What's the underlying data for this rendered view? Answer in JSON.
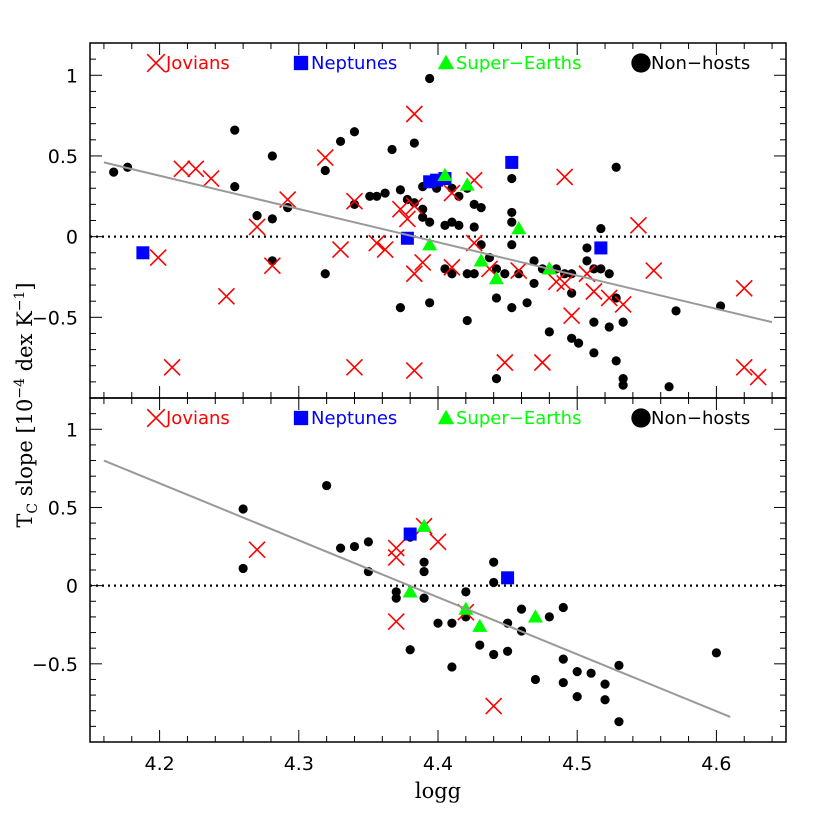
{
  "chart_data": [
    {
      "type": "scatter",
      "panel": "top",
      "xlim": [
        4.15,
        4.65
      ],
      "ylim": [
        -1.0,
        1.2
      ],
      "yticks": [
        {
          "v": 1,
          "label": "1"
        },
        {
          "v": 0.5,
          "label": "0.5"
        },
        {
          "v": 0,
          "label": "0"
        },
        {
          "v": -0.5,
          "label": "−0.5"
        }
      ],
      "fit_line": [
        [
          4.16,
          0.46
        ],
        [
          4.64,
          -0.53
        ]
      ],
      "zero_line": 0,
      "legend": [
        {
          "label": "Jovians",
          "marker": "cross",
          "color": "#ff0000"
        },
        {
          "label": "Neptunes",
          "marker": "square",
          "color": "#0000ff"
        },
        {
          "label": "Super−Earths",
          "marker": "triangle",
          "color": "#00ff00"
        },
        {
          "label": "Non−hosts",
          "marker": "circle",
          "color": "#000000"
        }
      ],
      "series": [
        {
          "name": "Non−hosts",
          "marker": "circle",
          "color": "#000000",
          "points": [
            [
              4.167,
              0.4
            ],
            [
              4.177,
              0.43
            ],
            [
              4.254,
              0.66
            ],
            [
              4.254,
              0.31
            ],
            [
              4.27,
              0.13
            ],
            [
              4.281,
              0.5
            ],
            [
              4.281,
              0.11
            ],
            [
              4.281,
              -0.15
            ],
            [
              4.292,
              0.18
            ],
            [
              4.319,
              0.41
            ],
            [
              4.319,
              -0.23
            ],
            [
              4.33,
              0.59
            ],
            [
              4.34,
              0.65
            ],
            [
              4.34,
              0.2
            ],
            [
              4.351,
              0.25
            ],
            [
              4.356,
              0.25
            ],
            [
              4.362,
              0.27
            ],
            [
              4.367,
              0.54
            ],
            [
              4.373,
              0.29
            ],
            [
              4.373,
              -0.44
            ],
            [
              4.378,
              0.23
            ],
            [
              4.383,
              0.58
            ],
            [
              4.383,
              0.21
            ],
            [
              4.389,
              0.31
            ],
            [
              4.389,
              0.17
            ],
            [
              4.389,
              0.12
            ],
            [
              4.394,
              0.98
            ],
            [
              4.394,
              0.33
            ],
            [
              4.394,
              0.09
            ],
            [
              4.394,
              -0.41
            ],
            [
              4.399,
              0.3
            ],
            [
              4.405,
              0.07
            ],
            [
              4.405,
              -0.2
            ],
            [
              4.41,
              0.3
            ],
            [
              4.41,
              0.09
            ],
            [
              4.41,
              -0.23
            ],
            [
              4.415,
              0.25
            ],
            [
              4.415,
              0.07
            ],
            [
              4.421,
              0.3
            ],
            [
              4.421,
              -0.23
            ],
            [
              4.421,
              -0.52
            ],
            [
              4.426,
              0.2
            ],
            [
              4.426,
              0.06
            ],
            [
              4.426,
              -0.23
            ],
            [
              4.431,
              0.18
            ],
            [
              4.431,
              -0.05
            ],
            [
              4.437,
              -0.13
            ],
            [
              4.442,
              -0.2
            ],
            [
              4.442,
              -0.38
            ],
            [
              4.442,
              -0.88
            ],
            [
              4.448,
              -0.23
            ],
            [
              4.453,
              0.36
            ],
            [
              4.453,
              0.15
            ],
            [
              4.453,
              0.09
            ],
            [
              4.453,
              -0.05
            ],
            [
              4.453,
              -0.44
            ],
            [
              4.458,
              -0.23
            ],
            [
              4.464,
              -0.41
            ],
            [
              4.469,
              -0.15
            ],
            [
              4.469,
              -0.29
            ],
            [
              4.475,
              -0.2
            ],
            [
              4.48,
              -0.59
            ],
            [
              4.485,
              -0.2
            ],
            [
              4.491,
              -0.23
            ],
            [
              4.496,
              -0.23
            ],
            [
              4.496,
              -0.35
            ],
            [
              4.496,
              -0.63
            ],
            [
              4.501,
              -0.66
            ],
            [
              4.507,
              -0.07
            ],
            [
              4.507,
              -0.15
            ],
            [
              4.512,
              -0.2
            ],
            [
              4.512,
              -0.53
            ],
            [
              4.512,
              -0.72
            ],
            [
              4.517,
              0.05
            ],
            [
              4.517,
              -0.2
            ],
            [
              4.523,
              -0.56
            ],
            [
              4.523,
              -0.23
            ],
            [
              4.528,
              0.43
            ],
            [
              4.528,
              -0.38
            ],
            [
              4.528,
              -0.77
            ],
            [
              4.533,
              -0.53
            ],
            [
              4.533,
              -0.88
            ],
            [
              4.533,
              -0.92
            ],
            [
              4.566,
              -0.93
            ],
            [
              4.571,
              -0.46
            ],
            [
              4.603,
              -0.43
            ]
          ]
        },
        {
          "name": "Jovians",
          "marker": "cross",
          "color": "#ff0000",
          "points": [
            [
              4.199,
              -0.13
            ],
            [
              4.209,
              -0.81
            ],
            [
              4.216,
              0.42
            ],
            [
              4.226,
              0.42
            ],
            [
              4.237,
              0.36
            ],
            [
              4.248,
              -0.37
            ],
            [
              4.27,
              0.06
            ],
            [
              4.281,
              -0.18
            ],
            [
              4.292,
              0.23
            ],
            [
              4.319,
              0.49
            ],
            [
              4.33,
              -0.08
            ],
            [
              4.34,
              0.22
            ],
            [
              4.34,
              -0.81
            ],
            [
              4.356,
              -0.04
            ],
            [
              4.362,
              -0.08
            ],
            [
              4.373,
              0.17
            ],
            [
              4.378,
              0.11
            ],
            [
              4.383,
              0.76
            ],
            [
              4.383,
              0.19
            ],
            [
              4.383,
              -0.23
            ],
            [
              4.383,
              -0.83
            ],
            [
              4.389,
              -0.16
            ],
            [
              4.41,
              0.27
            ],
            [
              4.41,
              -0.19
            ],
            [
              4.426,
              0.35
            ],
            [
              4.426,
              -0.04
            ],
            [
              4.437,
              -0.2
            ],
            [
              4.448,
              -0.78
            ],
            [
              4.458,
              -0.21
            ],
            [
              4.475,
              -0.78
            ],
            [
              4.485,
              -0.28
            ],
            [
              4.491,
              0.37
            ],
            [
              4.491,
              -0.29
            ],
            [
              4.496,
              -0.49
            ],
            [
              4.507,
              -0.23
            ],
            [
              4.512,
              -0.34
            ],
            [
              4.523,
              -0.38
            ],
            [
              4.533,
              -0.42
            ],
            [
              4.544,
              0.07
            ],
            [
              4.555,
              -0.21
            ],
            [
              4.62,
              -0.32
            ],
            [
              4.62,
              -0.81
            ],
            [
              4.63,
              -0.87
            ]
          ]
        },
        {
          "name": "Neptunes",
          "marker": "square",
          "color": "#0000ff",
          "points": [
            [
              4.188,
              -0.1
            ],
            [
              4.378,
              -0.01
            ],
            [
              4.394,
              0.34
            ],
            [
              4.399,
              0.35
            ],
            [
              4.405,
              0.36
            ],
            [
              4.453,
              0.46
            ],
            [
              4.517,
              -0.07
            ]
          ]
        },
        {
          "name": "Super−Earths",
          "marker": "triangle",
          "color": "#00ff00",
          "points": [
            [
              4.394,
              -0.05
            ],
            [
              4.405,
              0.38
            ],
            [
              4.421,
              0.32
            ],
            [
              4.431,
              -0.15
            ],
            [
              4.442,
              -0.26
            ],
            [
              4.458,
              0.05
            ],
            [
              4.48,
              -0.2
            ]
          ]
        }
      ]
    },
    {
      "type": "scatter",
      "panel": "bottom",
      "xlim": [
        4.15,
        4.65
      ],
      "ylim": [
        -1.0,
        1.2
      ],
      "xlabel": "logg",
      "xticks": [
        {
          "v": 4.2,
          "label": "4.2"
        },
        {
          "v": 4.3,
          "label": "4.3"
        },
        {
          "v": 4.4,
          "label": "4.4"
        },
        {
          "v": 4.5,
          "label": "4.5"
        },
        {
          "v": 4.6,
          "label": "4.6"
        }
      ],
      "yticks": [
        {
          "v": 1,
          "label": "1"
        },
        {
          "v": 0.5,
          "label": "0.5"
        },
        {
          "v": 0,
          "label": "0"
        },
        {
          "v": -0.5,
          "label": "−0.5"
        }
      ],
      "fit_line": [
        [
          4.16,
          0.8
        ],
        [
          4.61,
          -0.84
        ]
      ],
      "zero_line": 0,
      "legend": [
        {
          "label": "Jovians",
          "marker": "cross",
          "color": "#ff0000"
        },
        {
          "label": "Neptunes",
          "marker": "square",
          "color": "#0000ff"
        },
        {
          "label": "Super−Earths",
          "marker": "triangle",
          "color": "#00ff00"
        },
        {
          "label": "Non−hosts",
          "marker": "circle",
          "color": "#000000"
        }
      ],
      "series": [
        {
          "name": "Non−hosts",
          "marker": "circle",
          "color": "#000000",
          "points": [
            [
              4.26,
              0.49
            ],
            [
              4.26,
              0.11
            ],
            [
              4.32,
              0.64
            ],
            [
              4.33,
              0.24
            ],
            [
              4.34,
              0.25
            ],
            [
              4.35,
              0.09
            ],
            [
              4.35,
              0.28
            ],
            [
              4.37,
              -0.04
            ],
            [
              4.37,
              -0.08
            ],
            [
              4.38,
              -0.41
            ],
            [
              4.38,
              0.31
            ],
            [
              4.39,
              0.15
            ],
            [
              4.39,
              0.09
            ],
            [
              4.39,
              -0.08
            ],
            [
              4.4,
              -0.24
            ],
            [
              4.41,
              -0.24
            ],
            [
              4.41,
              -0.52
            ],
            [
              4.42,
              -0.04
            ],
            [
              4.42,
              -0.2
            ],
            [
              4.43,
              -0.38
            ],
            [
              4.44,
              0.15
            ],
            [
              4.44,
              0.02
            ],
            [
              4.44,
              -0.44
            ],
            [
              4.45,
              -0.42
            ],
            [
              4.45,
              -0.24
            ],
            [
              4.46,
              -0.15
            ],
            [
              4.46,
              -0.29
            ],
            [
              4.47,
              -0.6
            ],
            [
              4.48,
              -0.2
            ],
            [
              4.49,
              -0.14
            ],
            [
              4.49,
              -0.47
            ],
            [
              4.49,
              -0.62
            ],
            [
              4.5,
              -0.55
            ],
            [
              4.5,
              -0.71
            ],
            [
              4.51,
              -0.56
            ],
            [
              4.52,
              -0.63
            ],
            [
              4.52,
              -0.73
            ],
            [
              4.53,
              -0.51
            ],
            [
              4.53,
              -0.87
            ],
            [
              4.6,
              -0.43
            ]
          ]
        },
        {
          "name": "Jovians",
          "marker": "cross",
          "color": "#ff0000",
          "points": [
            [
              4.27,
              0.23
            ],
            [
              4.37,
              0.24
            ],
            [
              4.37,
              0.18
            ],
            [
              4.37,
              -0.23
            ],
            [
              4.39,
              0.38
            ],
            [
              4.4,
              0.28
            ],
            [
              4.42,
              -0.17
            ],
            [
              4.44,
              -0.77
            ]
          ]
        },
        {
          "name": "Neptunes",
          "marker": "square",
          "color": "#0000ff",
          "points": [
            [
              4.38,
              0.33
            ],
            [
              4.45,
              0.05
            ]
          ]
        },
        {
          "name": "Super−Earths",
          "marker": "triangle",
          "color": "#00ff00",
          "points": [
            [
              4.38,
              -0.04
            ],
            [
              4.39,
              0.38
            ],
            [
              4.42,
              -0.15
            ],
            [
              4.43,
              -0.26
            ],
            [
              4.47,
              -0.2
            ]
          ]
        }
      ]
    }
  ],
  "shared_ylabel_main": "T",
  "shared_ylabel_sub": "C",
  "shared_ylabel_rest": " slope [10",
  "shared_ylabel_sup1": "−4",
  "shared_ylabel_mid": " dex K",
  "shared_ylabel_sup2": "−1",
  "shared_ylabel_end": "]"
}
